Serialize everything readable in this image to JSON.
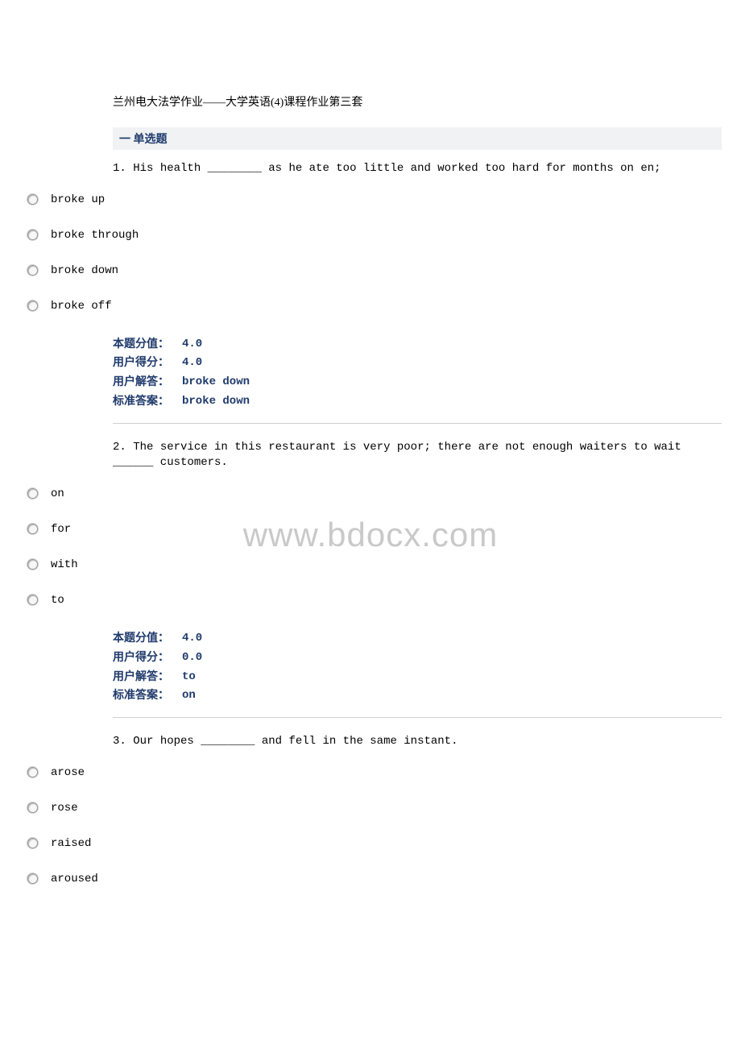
{
  "document_title": "兰州电大法学作业——大学英语(4)课程作业第三套",
  "section_header": "一 单选题",
  "watermark": "www.bdocx.com",
  "labels": {
    "score_value": "本题分值：",
    "user_score": "用户得分：",
    "user_answer": "用户解答：",
    "correct_answer": "标准答案："
  },
  "questions": [
    {
      "number": "1.",
      "text": "His health ________ as he ate too little and worked too hard for months on en;",
      "options": [
        "broke up",
        "broke through",
        "broke down",
        "broke off"
      ],
      "score_value": "4.0",
      "user_score": "4.0",
      "user_answer": "broke down",
      "correct_answer": "broke down"
    },
    {
      "number": "2.",
      "text": "The service in this restaurant is very poor; there are not enough waiters to wait ______ customers.",
      "options": [
        "on",
        "for",
        "with",
        "to"
      ],
      "score_value": "4.0",
      "user_score": "0.0",
      "user_answer": "to",
      "correct_answer": "on"
    },
    {
      "number": "3.",
      "text": "Our hopes ________ and fell in the same instant.",
      "options": [
        "arose",
        "rose",
        "raised",
        "aroused"
      ]
    }
  ]
}
